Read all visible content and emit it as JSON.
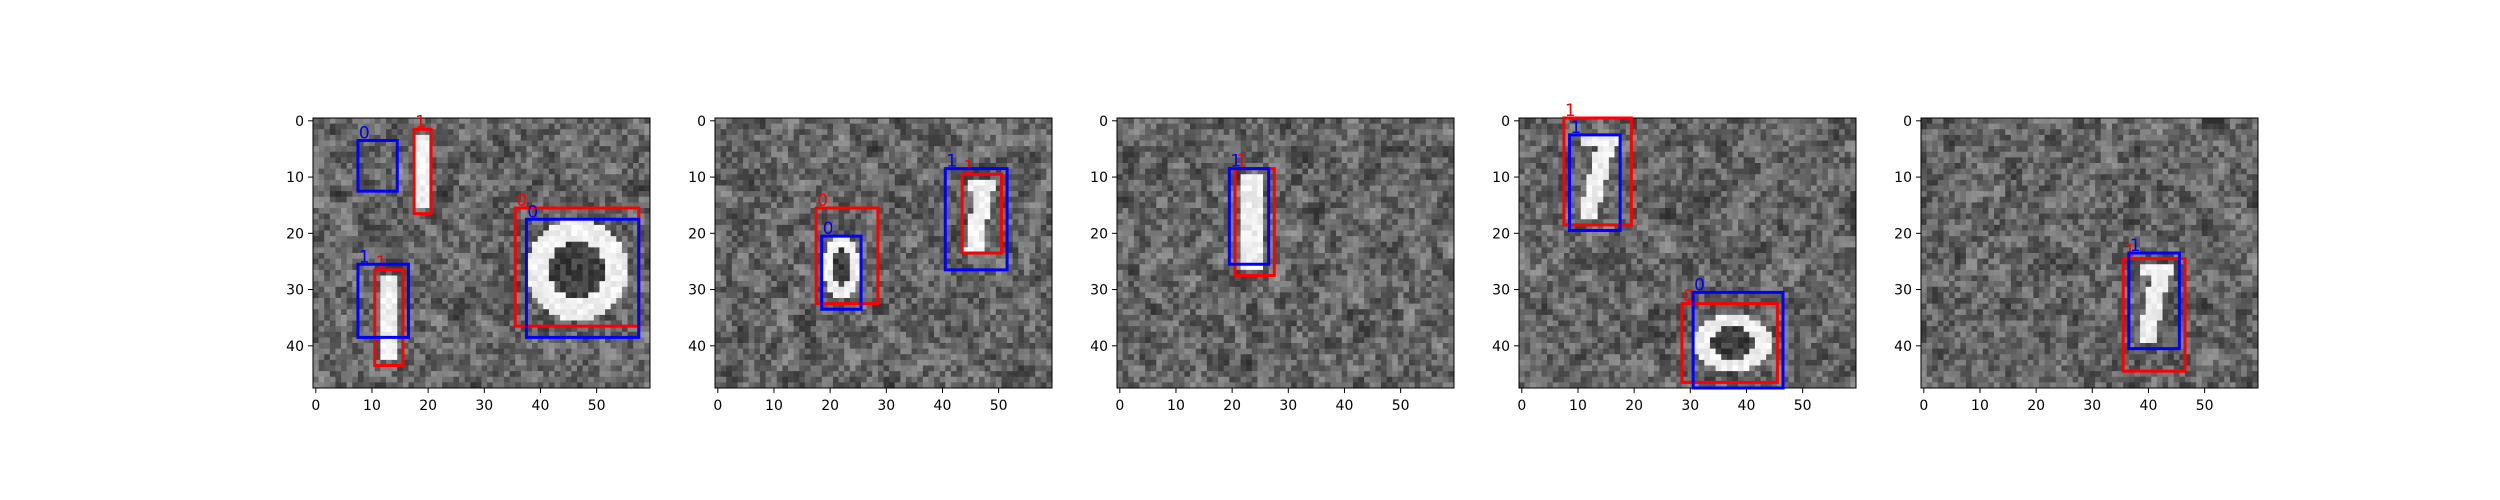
{
  "figure": {
    "panel_count": 5,
    "image_width_units": 60,
    "image_height_units": 48,
    "colormap": "grayscale",
    "box_colors": {
      "prediction": "#ff0000",
      "ground_truth": "#0000ff"
    }
  },
  "axes": {
    "x_ticks": [
      0,
      10,
      20,
      30,
      40,
      50
    ],
    "y_ticks": [
      0,
      10,
      20,
      30,
      40
    ]
  },
  "panels": [
    {
      "red_boxes": [
        {
          "label": "1",
          "x0": 18,
          "y0": 2,
          "x1": 21,
          "y1": 17
        },
        {
          "label": "0",
          "x0": 36,
          "y0": 16,
          "x1": 58,
          "y1": 37
        },
        {
          "label": "1",
          "x0": 11,
          "y0": 27,
          "x1": 16,
          "y1": 44
        }
      ],
      "blue_boxes": [
        {
          "label": "0",
          "x0": 8,
          "y0": 4,
          "x1": 15,
          "y1": 13
        },
        {
          "label": "0",
          "x0": 38,
          "y0": 18,
          "x1": 58,
          "y1": 39
        },
        {
          "label": "1",
          "x0": 8,
          "y0": 26,
          "x1": 17,
          "y1": 39
        }
      ],
      "digits": [
        {
          "type": "bar",
          "x0": 18,
          "y0": 3,
          "x1": 21,
          "y1": 16
        },
        {
          "type": "ring",
          "x0": 38,
          "y0": 18,
          "x1": 56,
          "y1": 36
        },
        {
          "type": "bar",
          "x0": 12,
          "y0": 28,
          "x1": 15,
          "y1": 43
        }
      ]
    },
    {
      "red_boxes": [
        {
          "label": "0",
          "x0": 18,
          "y0": 16,
          "x1": 29,
          "y1": 33
        },
        {
          "label": "1",
          "x0": 44,
          "y0": 10,
          "x1": 51,
          "y1": 24
        }
      ],
      "blue_boxes": [
        {
          "label": "0",
          "x0": 19,
          "y0": 21,
          "x1": 26,
          "y1": 34
        },
        {
          "label": "1",
          "x0": 41,
          "y0": 9,
          "x1": 52,
          "y1": 27
        }
      ],
      "digits": [
        {
          "type": "ring",
          "x0": 19,
          "y0": 21,
          "x1": 26,
          "y1": 32
        },
        {
          "type": "slash",
          "x0": 44,
          "y0": 11,
          "x1": 50,
          "y1": 24
        }
      ]
    },
    {
      "red_boxes": [
        {
          "label": "1",
          "x0": 21,
          "y0": 9,
          "x1": 28,
          "y1": 28
        }
      ],
      "blue_boxes": [
        {
          "label": "1",
          "x0": 20,
          "y0": 9,
          "x1": 27,
          "y1": 26
        }
      ],
      "digits": [
        {
          "type": "bar",
          "x0": 22,
          "y0": 10,
          "x1": 26,
          "y1": 27
        }
      ]
    },
    {
      "red_boxes": [
        {
          "label": "1",
          "x0": 8,
          "y0": 0,
          "x1": 20,
          "y1": 19
        },
        {
          "label": "0",
          "x0": 29,
          "y0": 33,
          "x1": 46,
          "y1": 47
        }
      ],
      "blue_boxes": [
        {
          "label": "1",
          "x0": 9,
          "y0": 3,
          "x1": 18,
          "y1": 20
        },
        {
          "label": "0",
          "x0": 31,
          "y0": 31,
          "x1": 47,
          "y1": 48
        }
      ],
      "digits": [
        {
          "type": "slash",
          "x0": 10,
          "y0": 3,
          "x1": 18,
          "y1": 18
        },
        {
          "type": "ring",
          "x0": 31,
          "y0": 35,
          "x1": 45,
          "y1": 45
        }
      ]
    },
    {
      "red_boxes": [
        {
          "label": "1",
          "x0": 36,
          "y0": 25,
          "x1": 47,
          "y1": 45
        }
      ],
      "blue_boxes": [
        {
          "label": "1",
          "x0": 37,
          "y0": 24,
          "x1": 46,
          "y1": 41
        }
      ],
      "digits": [
        {
          "type": "slash",
          "x0": 38,
          "y0": 26,
          "x1": 45,
          "y1": 40
        }
      ]
    }
  ]
}
